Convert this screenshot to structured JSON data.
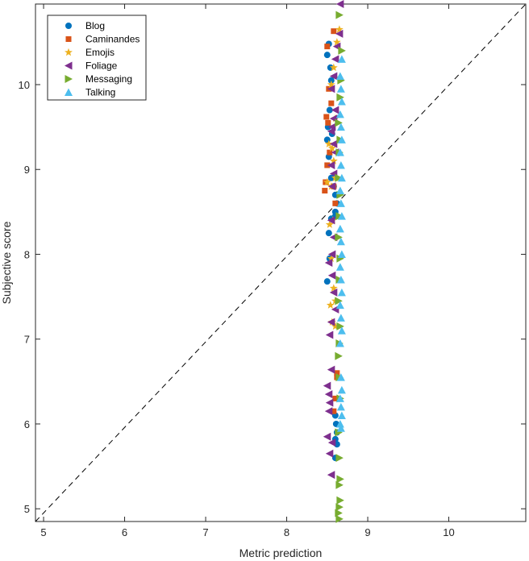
{
  "chart_data": {
    "type": "scatter",
    "title": "",
    "xlabel": "Metric prediction",
    "ylabel": "Subjective score",
    "xlim": [
      4.9,
      10.95
    ],
    "ylim": [
      4.85,
      10.95
    ],
    "xticks": [
      5,
      6,
      7,
      8,
      9,
      10
    ],
    "yticks": [
      5,
      6,
      7,
      8,
      9,
      10
    ],
    "grid": false,
    "legend_position": "top-left",
    "reference_line": {
      "style": "dashed",
      "color": "#000000",
      "from": [
        4.9,
        4.85
      ],
      "to": [
        10.95,
        10.95
      ]
    },
    "series": [
      {
        "name": "Blog",
        "marker": "circle",
        "color": "#0072BD",
        "x": [
          8.5,
          8.52,
          8.54,
          8.55,
          8.53,
          8.51,
          8.56,
          8.5,
          8.52,
          8.55,
          8.58,
          8.6,
          8.62,
          8.6,
          8.6,
          8.55,
          8.52,
          8.53,
          8.5,
          8.6,
          8.61,
          8.62,
          8.6,
          8.62,
          8.6
        ],
        "y": [
          10.35,
          10.48,
          10.2,
          10.05,
          9.7,
          9.5,
          9.42,
          9.35,
          9.15,
          8.9,
          8.8,
          8.7,
          8.6,
          8.5,
          8.45,
          8.42,
          8.25,
          7.95,
          7.68,
          6.1,
          6.0,
          5.9,
          5.82,
          5.76,
          5.6
        ]
      },
      {
        "name": "Caminandes",
        "marker": "square",
        "color": "#D95319",
        "x": [
          8.58,
          8.5,
          8.52,
          8.55,
          8.49,
          8.51,
          8.53,
          8.5,
          8.48,
          8.47,
          8.58,
          8.6,
          8.62,
          8.6,
          8.58,
          8.62
        ],
        "y": [
          10.63,
          10.45,
          9.95,
          9.78,
          9.62,
          9.55,
          9.2,
          9.05,
          8.85,
          8.75,
          8.8,
          8.6,
          6.6,
          6.3,
          6.15,
          6.55
        ]
      },
      {
        "name": "Emojis",
        "marker": "star",
        "color": "#EDB120",
        "x": [
          8.65,
          8.62,
          8.58,
          8.55,
          8.6,
          8.52,
          8.56,
          8.58,
          8.6,
          8.5,
          8.55,
          8.57,
          8.53,
          8.55,
          8.58,
          8.6,
          8.54,
          8.56,
          8.6
        ],
        "y": [
          10.65,
          10.5,
          10.2,
          10.0,
          9.6,
          9.3,
          9.25,
          9.1,
          8.9,
          8.85,
          8.8,
          8.4,
          8.35,
          7.95,
          7.6,
          7.45,
          7.4,
          7.2,
          7.15
        ]
      },
      {
        "name": "Foliage",
        "marker": "triangle-left",
        "color": "#7E2F8E",
        "x": [
          8.66,
          8.65,
          8.62,
          8.6,
          8.58,
          8.55,
          8.6,
          8.58,
          8.56,
          8.55,
          8.58,
          8.6,
          8.55,
          8.58,
          8.56,
          8.55,
          8.58,
          8.56,
          8.52,
          8.56,
          8.58,
          8.6,
          8.55,
          8.53,
          8.55,
          8.5,
          8.52,
          8.53,
          8.52,
          8.5,
          8.56,
          8.53,
          8.55
        ],
        "y": [
          10.95,
          10.6,
          10.45,
          10.3,
          10.1,
          9.95,
          9.7,
          9.6,
          9.5,
          9.45,
          9.3,
          9.2,
          9.05,
          8.95,
          8.8,
          8.4,
          8.2,
          8.0,
          7.9,
          7.75,
          7.55,
          7.35,
          7.2,
          7.05,
          6.64,
          6.45,
          6.35,
          6.25,
          6.15,
          5.85,
          5.78,
          5.65,
          5.4
        ]
      },
      {
        "name": "Messaging",
        "marker": "triangle-right",
        "color": "#77AC30",
        "x": [
          8.65,
          8.68,
          8.67,
          8.66,
          8.64,
          8.66,
          8.65,
          8.64,
          8.66,
          8.65,
          8.64,
          8.66,
          8.65,
          8.64,
          8.66,
          8.65,
          8.64,
          8.65,
          8.66,
          8.64,
          8.65,
          8.66,
          8.65,
          8.66,
          8.65,
          8.64,
          8.65
        ],
        "y": [
          10.82,
          10.4,
          10.05,
          9.85,
          9.55,
          9.35,
          9.2,
          8.9,
          8.7,
          8.45,
          8.2,
          7.95,
          7.7,
          7.45,
          7.15,
          6.95,
          6.8,
          6.55,
          6.3,
          5.9,
          5.6,
          5.35,
          5.28,
          5.1,
          5.02,
          4.95,
          4.88
        ]
      },
      {
        "name": "Talking",
        "marker": "triangle-up",
        "color": "#4DBEEE",
        "x": [
          8.68,
          8.66,
          8.67,
          8.68,
          8.66,
          8.67,
          8.68,
          8.66,
          8.67,
          8.68,
          8.66,
          8.67,
          8.68,
          8.66,
          8.67,
          8.68,
          8.66,
          8.67,
          8.68,
          8.66,
          8.67,
          8.68,
          8.66,
          8.67,
          8.68,
          8.66,
          8.67,
          8.68,
          8.66,
          8.67
        ],
        "y": [
          10.3,
          10.1,
          9.95,
          9.8,
          9.65,
          9.5,
          9.35,
          9.2,
          9.05,
          8.9,
          8.75,
          8.6,
          8.45,
          8.3,
          8.15,
          8.0,
          7.85,
          7.7,
          7.55,
          7.4,
          7.25,
          7.1,
          6.95,
          6.55,
          6.4,
          6.3,
          6.2,
          6.1,
          6.0,
          5.95
        ]
      }
    ]
  }
}
